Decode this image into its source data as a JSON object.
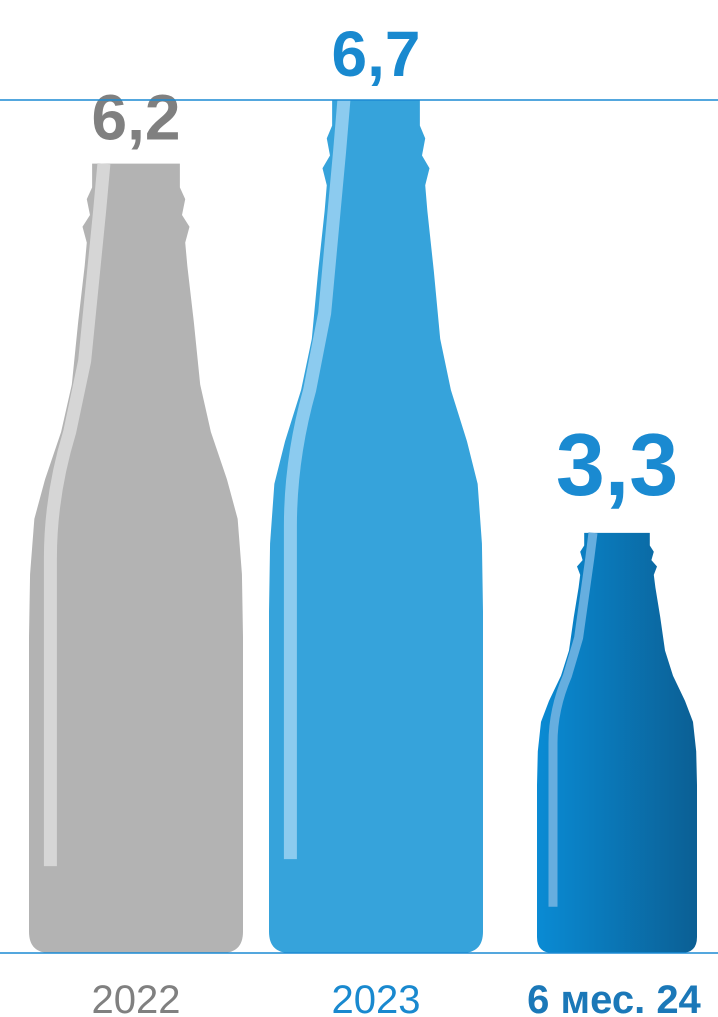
{
  "chart_data": {
    "type": "bar",
    "categories": [
      "2022",
      "2023",
      "6 мес. 24"
    ],
    "values": [
      6.2,
      6.7,
      3.3
    ],
    "value_labels": [
      "6,2",
      "6,7",
      "3,3"
    ],
    "title": "",
    "xlabel": "",
    "ylabel": "",
    "ylim": [
      0,
      6.7
    ],
    "grid": false,
    "legend": "none",
    "mark": "bottle"
  },
  "colors": {
    "bars": [
      "#b3b3b3",
      "#36a3db",
      "#0d7cc0"
    ],
    "value_labels": [
      "#808080",
      "#1989cf",
      "#1a8ad1"
    ],
    "categories": [
      "#808080",
      "#1989cf",
      "#1b78b8"
    ],
    "highlight": [
      "#d6d6d6",
      "#8ccbef",
      "#66aedf"
    ],
    "axis": "#1b8ad3"
  }
}
